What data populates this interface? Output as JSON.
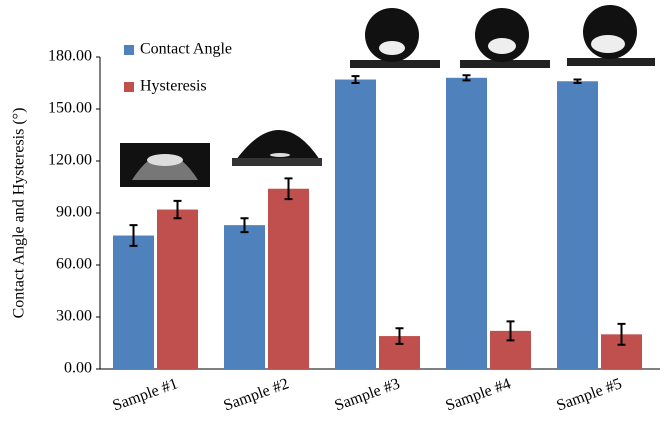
{
  "chart_data": {
    "type": "bar",
    "y_label": "Contact Angle and Hysteresis (°)",
    "categories": [
      "Sample #1",
      "Sample #2",
      "Sample #3",
      "Sample #4",
      "Sample #5"
    ],
    "series": [
      {
        "name": "Contact Angle",
        "color": "#4f81bd",
        "values": [
          77,
          83,
          167,
          168,
          166
        ],
        "errors": [
          6,
          4,
          2,
          1.5,
          1
        ]
      },
      {
        "name": "Hysteresis",
        "color": "#c0504d",
        "values": [
          92,
          104,
          19,
          22,
          20
        ],
        "errors": [
          5,
          6,
          4.5,
          5.5,
          6
        ]
      }
    ],
    "ylim": [
      0,
      180
    ],
    "yticks": [
      {
        "value": 0,
        "label": "0.00"
      },
      {
        "value": 30,
        "label": "30.00"
      },
      {
        "value": 60,
        "label": "60.00"
      },
      {
        "value": 90,
        "label": "90.00"
      },
      {
        "value": 120,
        "label": "120.00"
      },
      {
        "value": 150,
        "label": "150.00"
      },
      {
        "value": 180,
        "label": "180.00"
      }
    ],
    "legend": "top-left"
  }
}
